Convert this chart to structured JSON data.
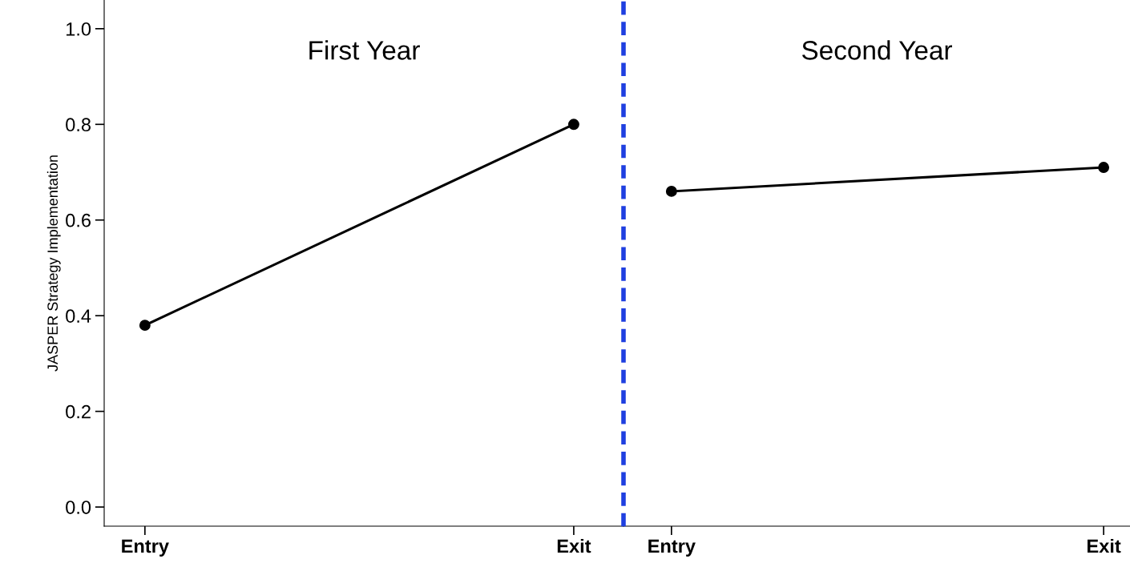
{
  "chart_data": [
    {
      "type": "line",
      "title": "First Year",
      "ylabel": "JASPER Strategy Implementation",
      "categories": [
        "Entry",
        "Exit"
      ],
      "series": [
        {
          "color": "#000000",
          "values": [
            0.38,
            0.8
          ]
        }
      ],
      "ylim": [
        -0.04,
        1.06
      ],
      "yticks": [
        {
          "value": 0,
          "label": "0.0"
        },
        {
          "value": 0.2,
          "label": "0.2"
        },
        {
          "value": 0.4,
          "label": "0.4"
        },
        {
          "value": 0.6,
          "label": "0.6"
        },
        {
          "value": 0.8,
          "label": "0.8"
        },
        {
          "value": 1.0,
          "label": "1.0"
        }
      ],
      "marker": "circle",
      "line_style": "solid"
    },
    {
      "type": "line",
      "title": "Second Year",
      "categories": [
        "Entry",
        "Exit"
      ],
      "series": [
        {
          "color": "#000000",
          "values": [
            0.66,
            0.71
          ]
        }
      ],
      "ylim": [
        -0.04,
        1.06
      ],
      "tick_labels": "x",
      "marker": "circle",
      "line_style": "solid"
    }
  ]
}
